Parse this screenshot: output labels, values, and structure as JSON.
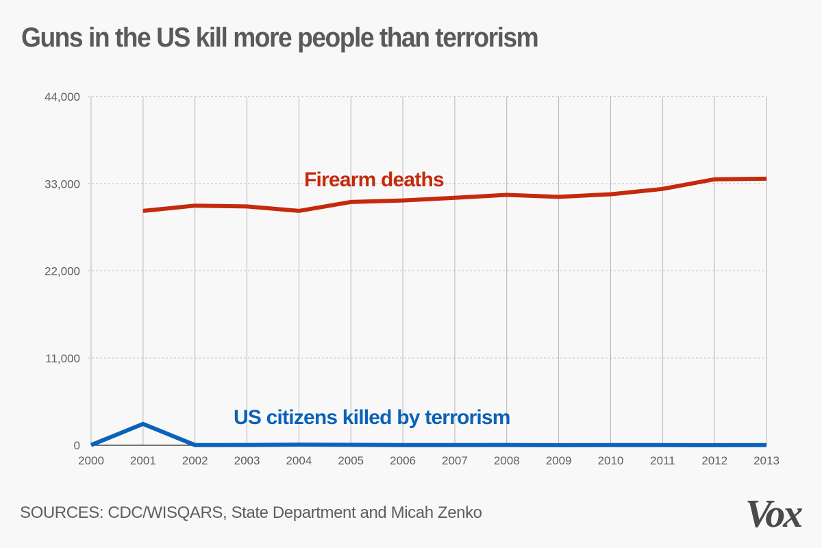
{
  "header": {
    "title": "Guns in the US kill more people than terrorism"
  },
  "footer": {
    "source": "SOURCES: CDC/WISQARS, State Department and Micah Zenko",
    "logo": "Vox"
  },
  "colors": {
    "firearm": "#c42a0c",
    "terrorism": "#0b62b8",
    "grid": "#b4b4b4",
    "axis": "#222222",
    "text": "#5e5e5e",
    "background": "#f8f8f8"
  },
  "chart_data": {
    "type": "line",
    "title": "Guns in the US kill more people than terrorism",
    "xlabel": "",
    "ylabel": "",
    "x": [
      2000,
      2001,
      2002,
      2003,
      2004,
      2005,
      2006,
      2007,
      2008,
      2009,
      2010,
      2011,
      2012,
      2013
    ],
    "x_tick_labels": [
      "2000",
      "2001",
      "2002",
      "2003",
      "2004",
      "2005",
      "2006",
      "2007",
      "2008",
      "2009",
      "2010",
      "2011",
      "2012",
      "2013"
    ],
    "ylim": [
      0,
      44000
    ],
    "y_ticks": [
      0,
      11000,
      22000,
      33000,
      44000
    ],
    "y_tick_labels": [
      "0",
      "11,000",
      "22,000",
      "33,000",
      "44,000"
    ],
    "grid": true,
    "legend": "inline labels",
    "series": [
      {
        "name": "Firearm deaths",
        "color": "#c42a0c",
        "values": [
          null,
          29573,
          30242,
          30136,
          29569,
          30694,
          30896,
          31224,
          31593,
          31347,
          31672,
          32351,
          33563,
          33636
        ]
      },
      {
        "name": "US citizens killed by terrorism",
        "color": "#0b62b8",
        "values": [
          23,
          2689,
          27,
          35,
          74,
          56,
          28,
          19,
          33,
          9,
          15,
          17,
          10,
          16
        ]
      }
    ],
    "annotations": [
      "Firearm deaths",
      "US citizens killed by terrorism"
    ]
  }
}
